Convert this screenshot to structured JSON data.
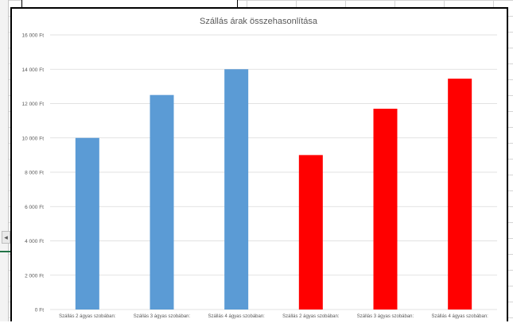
{
  "chart_data": {
    "type": "bar",
    "title": "Szállás árak összehasonlítása",
    "xlabel": "",
    "ylabel": "",
    "ylim": [
      0,
      16000
    ],
    "y_ticks": [
      "0 Ft",
      "2 000 Ft",
      "4 000 Ft",
      "6 000 Ft",
      "8 000 Ft",
      "10 000 Ft",
      "12 000 Ft",
      "14 000 Ft",
      "16 000 Ft"
    ],
    "y_tick_values": [
      0,
      2000,
      4000,
      6000,
      8000,
      10000,
      12000,
      14000,
      16000
    ],
    "categories": [
      "Szállás 2 ágyas szobában:",
      "Szállás 3 ágyas szobában:",
      "Szállás 4 ágyas szobában:",
      "Szállás 2 ágyas szobában:",
      "Szállás 3 ágyas szobában:",
      "Szállás 4 ágyas szobában:"
    ],
    "values": [
      10000,
      12500,
      14000,
      9000,
      11700,
      13450
    ],
    "bar_colors": [
      "#5b9bd5",
      "#5b9bd5",
      "#5b9bd5",
      "#ff0000",
      "#ff0000",
      "#ff0000"
    ],
    "grid": true,
    "legend": "none"
  }
}
